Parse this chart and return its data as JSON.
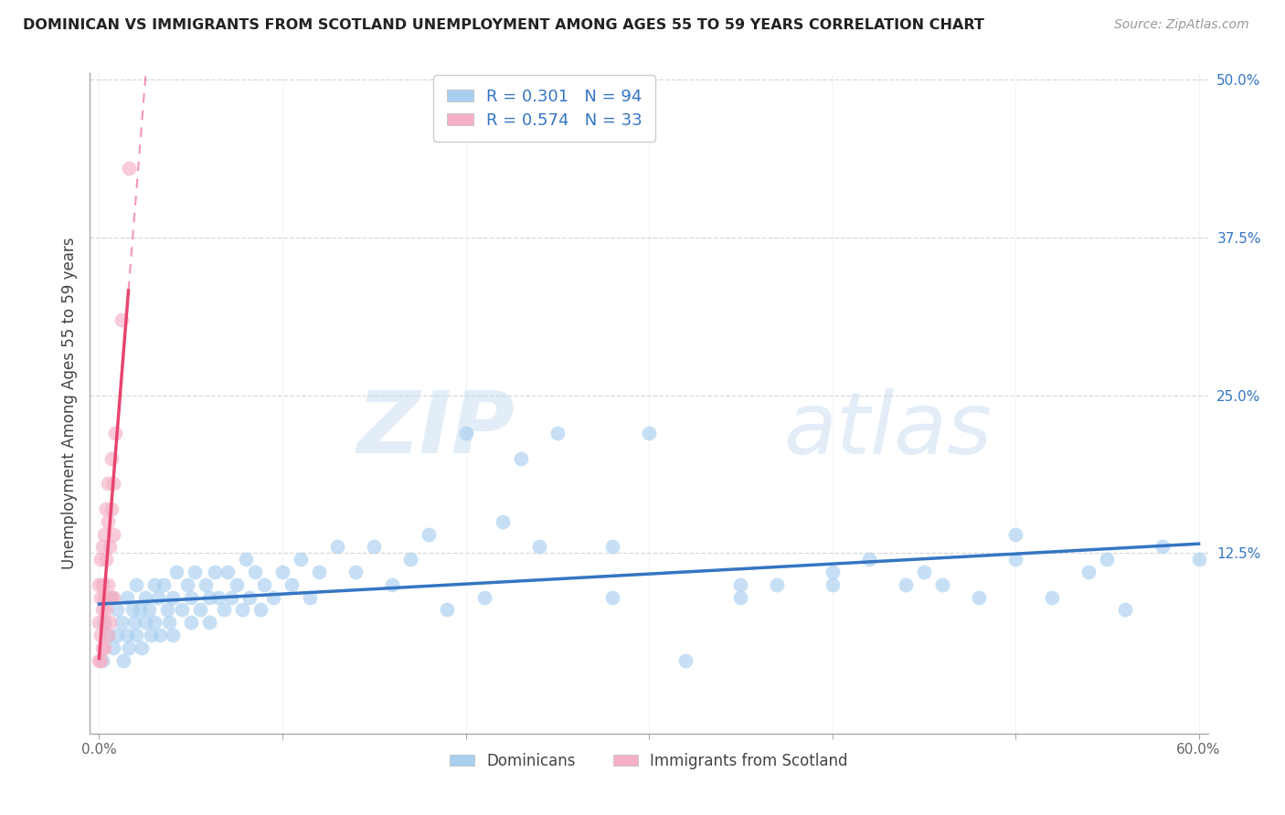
{
  "title": "DOMINICAN VS IMMIGRANTS FROM SCOTLAND UNEMPLOYMENT AMONG AGES 55 TO 59 YEARS CORRELATION CHART",
  "source": "Source: ZipAtlas.com",
  "ylabel": "Unemployment Among Ages 55 to 59 years",
  "xlim_min": -0.005,
  "xlim_max": 0.605,
  "ylim_min": -0.018,
  "ylim_max": 0.505,
  "xtick_vals": [
    0.0,
    0.1,
    0.2,
    0.3,
    0.4,
    0.5,
    0.6
  ],
  "xtick_labels": [
    "0.0%",
    "",
    "",
    "",
    "",
    "",
    "60.0%"
  ],
  "ytick_vals_right": [
    0.125,
    0.25,
    0.375,
    0.5
  ],
  "ytick_labels_right": [
    "12.5%",
    "25.0%",
    "37.5%",
    "50.0%"
  ],
  "blue_color": "#a8cff0",
  "pink_color": "#f5b0c5",
  "blue_line_color": "#3575c3",
  "pink_line_color": "#e8446e",
  "grid_color": "#d8d8d8",
  "R_blue": "0.301",
  "N_blue": "94",
  "R_pink": "0.574",
  "N_pink": "33",
  "legend_label_blue": "Dominicans",
  "legend_label_pink": "Immigrants from Scotland",
  "scatter_size": 130,
  "scatter_alpha": 0.65,
  "blue_x": [
    0.002,
    0.003,
    0.005,
    0.007,
    0.008,
    0.01,
    0.01,
    0.012,
    0.013,
    0.015,
    0.015,
    0.016,
    0.018,
    0.019,
    0.02,
    0.02,
    0.022,
    0.023,
    0.025,
    0.025,
    0.027,
    0.028,
    0.03,
    0.03,
    0.032,
    0.033,
    0.035,
    0.037,
    0.038,
    0.04,
    0.04,
    0.042,
    0.045,
    0.048,
    0.05,
    0.05,
    0.052,
    0.055,
    0.058,
    0.06,
    0.06,
    0.063,
    0.065,
    0.068,
    0.07,
    0.072,
    0.075,
    0.078,
    0.08,
    0.082,
    0.085,
    0.088,
    0.09,
    0.095,
    0.1,
    0.105,
    0.11,
    0.115,
    0.12,
    0.13,
    0.14,
    0.15,
    0.16,
    0.17,
    0.18,
    0.19,
    0.2,
    0.21,
    0.22,
    0.23,
    0.24,
    0.25,
    0.28,
    0.3,
    0.32,
    0.35,
    0.37,
    0.4,
    0.42,
    0.44,
    0.46,
    0.48,
    0.5,
    0.52,
    0.54,
    0.56,
    0.58,
    0.6,
    0.28,
    0.35,
    0.4,
    0.45,
    0.5,
    0.55
  ],
  "blue_y": [
    0.04,
    0.07,
    0.06,
    0.09,
    0.05,
    0.08,
    0.06,
    0.07,
    0.04,
    0.09,
    0.06,
    0.05,
    0.08,
    0.07,
    0.1,
    0.06,
    0.08,
    0.05,
    0.09,
    0.07,
    0.08,
    0.06,
    0.1,
    0.07,
    0.09,
    0.06,
    0.1,
    0.08,
    0.07,
    0.09,
    0.06,
    0.11,
    0.08,
    0.1,
    0.09,
    0.07,
    0.11,
    0.08,
    0.1,
    0.09,
    0.07,
    0.11,
    0.09,
    0.08,
    0.11,
    0.09,
    0.1,
    0.08,
    0.12,
    0.09,
    0.11,
    0.08,
    0.1,
    0.09,
    0.11,
    0.1,
    0.12,
    0.09,
    0.11,
    0.13,
    0.11,
    0.13,
    0.1,
    0.12,
    0.14,
    0.08,
    0.22,
    0.09,
    0.15,
    0.2,
    0.13,
    0.22,
    0.09,
    0.22,
    0.04,
    0.1,
    0.1,
    0.11,
    0.12,
    0.1,
    0.1,
    0.09,
    0.12,
    0.09,
    0.11,
    0.08,
    0.13,
    0.12,
    0.13,
    0.09,
    0.1,
    0.11,
    0.14,
    0.12
  ],
  "pink_x": [
    0.0,
    0.0,
    0.0,
    0.001,
    0.001,
    0.001,
    0.001,
    0.002,
    0.002,
    0.002,
    0.002,
    0.003,
    0.003,
    0.003,
    0.003,
    0.004,
    0.004,
    0.004,
    0.005,
    0.005,
    0.005,
    0.005,
    0.006,
    0.006,
    0.007,
    0.007,
    0.007,
    0.008,
    0.008,
    0.008,
    0.009,
    0.012,
    0.016
  ],
  "pink_y": [
    0.04,
    0.07,
    0.1,
    0.06,
    0.09,
    0.12,
    0.04,
    0.08,
    0.13,
    0.05,
    0.1,
    0.07,
    0.14,
    0.09,
    0.05,
    0.12,
    0.08,
    0.16,
    0.15,
    0.1,
    0.06,
    0.18,
    0.13,
    0.07,
    0.16,
    0.09,
    0.2,
    0.14,
    0.18,
    0.09,
    0.22,
    0.31,
    0.43
  ]
}
